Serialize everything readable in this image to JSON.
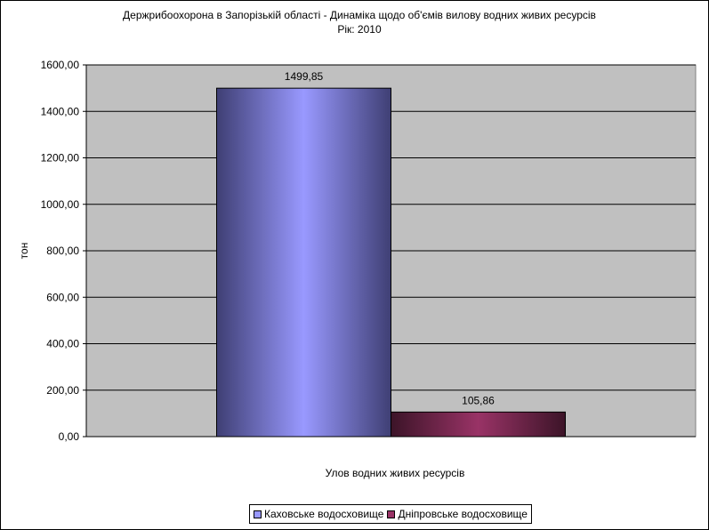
{
  "chart_data": {
    "type": "bar",
    "title": "Держрибоохорона в Запорізькій області - Динаміка щодо об'ємів вилову водних живих ресурсів",
    "subtitle": "Рік: 2010",
    "xlabel": "Улов водних живих ресурсів",
    "ylabel": "тон",
    "ylim": [
      0,
      1600
    ],
    "yticks": [
      "0,00",
      "200,00",
      "400,00",
      "600,00",
      "800,00",
      "1000,00",
      "1200,00",
      "1400,00",
      "1600,00"
    ],
    "categories": [
      ""
    ],
    "series": [
      {
        "name": "Каховське водосховище",
        "values": [
          1499.85
        ],
        "label": "1499,85",
        "color": "#9999ff",
        "dark": "#3f3f74"
      },
      {
        "name": "Дніпровське водосховище",
        "values": [
          105.86
        ],
        "label": "105,86",
        "color": "#993366",
        "dark": "#3c1428"
      }
    ],
    "plot_background": "#c0c0c0",
    "grid": true,
    "legend_position": "bottom"
  }
}
